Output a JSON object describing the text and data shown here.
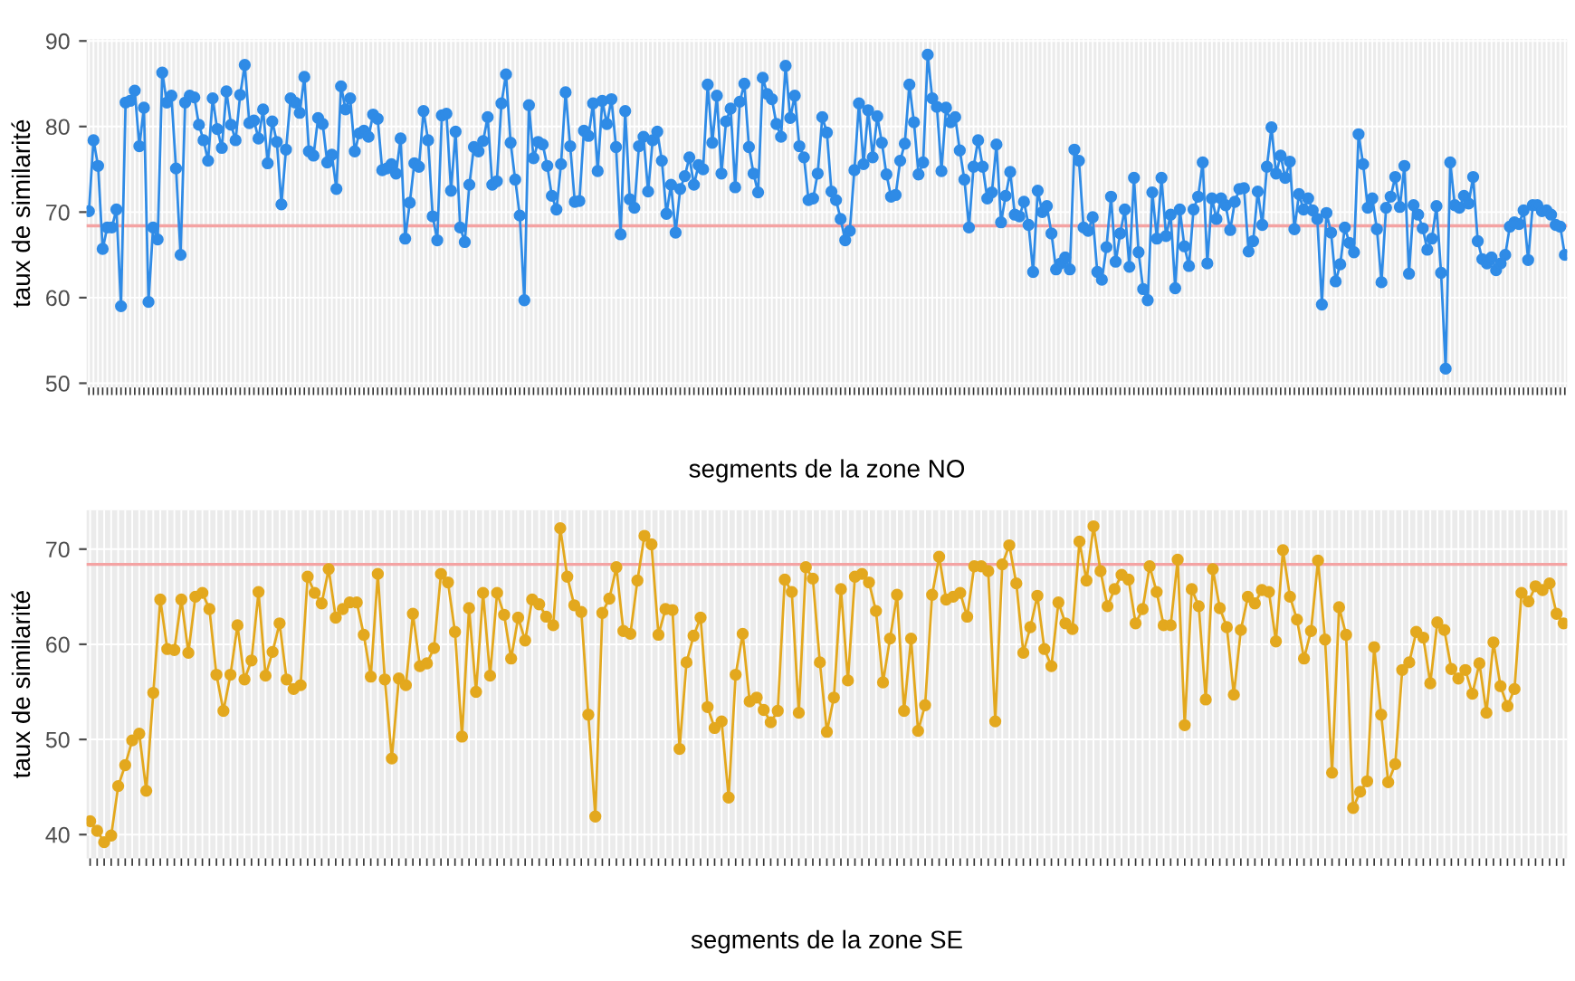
{
  "chart_data": [
    {
      "type": "line",
      "xlabel": "segments de la zone NO",
      "ylabel": "taux de similarité",
      "grid": true,
      "marker": "circle",
      "line_style": "solid",
      "ylim": [
        49.5,
        90.2
      ],
      "yticks": [
        50,
        60,
        70,
        80,
        90
      ],
      "ref_lines": [
        {
          "axis": "y",
          "value": 68.4,
          "color": "#f4a3a3"
        }
      ],
      "categories": [
        null,
        null,
        null,
        null,
        null,
        null,
        null,
        null,
        null,
        null,
        null,
        null,
        null,
        null,
        null,
        null,
        null,
        null,
        null,
        null,
        null,
        null,
        null,
        null,
        null,
        null,
        null,
        null,
        null,
        null,
        null,
        null,
        null,
        null,
        null,
        null,
        null,
        null,
        null,
        null,
        null,
        null,
        null,
        null,
        null,
        null,
        null,
        null,
        null,
        null,
        null,
        null,
        null,
        null,
        null,
        null,
        null,
        null,
        null,
        null,
        null,
        null,
        null,
        null,
        null,
        null,
        null,
        null,
        null,
        null,
        null,
        null,
        null,
        null,
        null,
        null,
        null,
        null,
        null,
        null,
        null,
        null,
        null,
        null,
        null,
        null,
        null,
        null,
        null,
        null,
        null,
        null,
        null,
        null,
        null,
        null,
        null,
        null,
        null,
        null,
        null,
        null,
        null,
        null,
        null,
        null,
        null,
        null,
        null,
        null,
        null,
        null,
        null,
        null,
        null,
        null,
        null,
        null,
        null,
        null,
        null,
        null,
        null,
        null,
        null,
        null,
        null,
        null,
        null,
        null,
        null,
        null,
        null,
        null,
        null,
        null,
        null,
        null,
        null,
        null,
        null,
        null,
        null,
        null,
        null,
        null,
        null,
        null,
        null,
        null,
        null,
        null,
        null,
        null,
        null,
        null,
        null,
        null,
        null,
        null,
        null,
        null,
        null,
        null,
        null,
        null,
        null,
        null,
        null,
        null,
        null,
        null,
        null,
        null,
        null,
        null,
        null,
        null,
        null,
        null,
        null,
        null,
        null,
        null,
        null,
        null,
        null,
        null,
        null,
        null,
        null,
        null,
        null,
        null,
        null,
        null,
        null,
        null,
        null,
        null,
        null,
        null,
        null,
        null,
        null,
        null,
        null,
        null,
        null,
        null,
        null,
        null,
        null,
        null,
        null,
        null,
        null,
        null,
        null,
        null,
        null,
        null,
        null,
        null,
        null,
        null,
        null,
        null,
        null,
        null,
        null,
        null,
        null,
        null,
        null,
        null,
        null,
        null,
        null,
        null,
        null,
        null,
        null,
        null,
        null,
        null,
        null,
        null,
        null,
        null,
        null,
        null,
        null,
        null,
        null,
        null,
        null,
        null,
        null,
        null,
        null,
        null,
        null,
        null,
        null,
        null,
        null,
        null,
        null,
        null,
        null,
        null,
        null,
        null,
        null,
        null,
        null,
        null,
        null,
        null,
        null,
        null,
        null,
        null,
        null,
        null,
        null,
        null,
        null,
        null,
        null,
        null,
        null,
        null,
        null,
        null,
        null,
        null,
        null,
        null,
        null,
        null,
        null,
        null,
        null,
        null,
        null,
        null,
        null,
        null,
        null,
        null,
        null,
        null,
        null,
        null,
        null,
        null,
        null,
        null,
        null,
        null,
        null
      ],
      "series": [
        {
          "color": "#2f8be6",
          "values": [
            70.1,
            78.4,
            75.4,
            65.7,
            68.2,
            68.2,
            70.3,
            59.0,
            82.8,
            83.0,
            84.2,
            77.7,
            82.2,
            59.5,
            68.2,
            66.8,
            86.3,
            82.8,
            83.6,
            75.1,
            65.0,
            82.8,
            83.6,
            83.4,
            80.2,
            78.4,
            76.0,
            83.3,
            79.7,
            77.5,
            84.1,
            80.2,
            78.4,
            83.7,
            87.2,
            80.4,
            80.7,
            78.6,
            82.0,
            75.7,
            80.6,
            78.2,
            70.9,
            77.3,
            83.3,
            82.8,
            81.6,
            85.8,
            77.1,
            76.6,
            81.0,
            80.3,
            75.8,
            76.7,
            72.7,
            84.7,
            82.0,
            83.3,
            77.1,
            79.2,
            79.5,
            78.8,
            81.4,
            80.9,
            74.9,
            75.1,
            75.6,
            74.5,
            78.6,
            66.9,
            71.1,
            75.7,
            75.3,
            81.8,
            78.4,
            69.5,
            66.7,
            81.3,
            81.5,
            72.5,
            79.4,
            68.2,
            66.5,
            73.2,
            77.6,
            77.1,
            78.3,
            81.1,
            73.2,
            73.6,
            82.7,
            86.1,
            78.1,
            73.8,
            69.6,
            59.7,
            82.5,
            76.3,
            78.2,
            77.9,
            75.4,
            71.9,
            70.3,
            75.6,
            84.0,
            77.7,
            71.2,
            71.3,
            79.5,
            78.9,
            82.7,
            74.8,
            83.0,
            80.3,
            83.2,
            77.6,
            67.4,
            81.8,
            71.5,
            70.5,
            77.7,
            78.8,
            72.4,
            78.4,
            79.4,
            76.0,
            69.8,
            73.2,
            67.6,
            72.7,
            74.2,
            76.4,
            73.2,
            75.5,
            75.0,
            84.9,
            78.1,
            83.6,
            74.5,
            80.6,
            82.1,
            72.9,
            82.9,
            85.0,
            77.6,
            74.5,
            72.3,
            85.7,
            83.8,
            83.2,
            80.3,
            78.8,
            87.1,
            81.0,
            83.6,
            77.7,
            76.4,
            71.4,
            71.6,
            74.5,
            81.1,
            79.3,
            72.4,
            71.4,
            69.2,
            66.7,
            67.8,
            74.9,
            82.7,
            75.6,
            81.9,
            76.4,
            81.2,
            78.1,
            74.4,
            71.8,
            72.0,
            76.0,
            78.0,
            84.9,
            80.5,
            74.4,
            75.8,
            88.4,
            83.3,
            82.3,
            74.8,
            82.2,
            80.5,
            81.1,
            77.2,
            73.8,
            68.2,
            75.3,
            78.4,
            75.3,
            71.6,
            72.3,
            77.9,
            68.8,
            71.9,
            74.7,
            69.7,
            69.5,
            71.2,
            68.5,
            63.0,
            72.5,
            70.0,
            70.7,
            67.5,
            63.3,
            64.0,
            64.7,
            63.3,
            77.3,
            76.0,
            68.2,
            67.8,
            69.4,
            63.0,
            62.1,
            65.9,
            71.8,
            64.2,
            67.5,
            70.3,
            63.6,
            74.0,
            65.3,
            61.0,
            59.7,
            72.3,
            66.9,
            74.0,
            67.2,
            69.7,
            61.1,
            70.3,
            66.0,
            63.7,
            70.3,
            71.8,
            75.8,
            64.0,
            71.6,
            69.2,
            71.6,
            70.8,
            67.9,
            71.2,
            72.7,
            72.8,
            65.4,
            66.6,
            72.4,
            68.5,
            75.3,
            79.9,
            74.5,
            76.6,
            74.0,
            75.9,
            68.0,
            72.1,
            70.3,
            71.6,
            70.2,
            69.2,
            59.2,
            69.9,
            67.6,
            61.9,
            63.9,
            68.2,
            66.4,
            65.3,
            79.1,
            75.6,
            70.5,
            71.6,
            68.0,
            61.8,
            70.5,
            71.8,
            74.1,
            70.6,
            75.4,
            62.8,
            70.8,
            69.7,
            68.1,
            65.6,
            66.9,
            70.7,
            62.9,
            51.7,
            75.8,
            70.8,
            70.5,
            71.9,
            71.0,
            74.1,
            66.6,
            64.5,
            64.0,
            64.7,
            63.2,
            64.0,
            65.0,
            68.3,
            68.8,
            68.6,
            70.2,
            64.4,
            70.8,
            70.8,
            70.1,
            70.2,
            69.7,
            68.5,
            68.3,
            65.0
          ]
        }
      ]
    },
    {
      "type": "line",
      "xlabel": "segments de la zone SE",
      "ylabel": "taux de similarité",
      "grid": true,
      "marker": "circle",
      "line_style": "solid",
      "ylim": [
        37.5,
        74.1
      ],
      "yticks": [
        40,
        50,
        60,
        70
      ],
      "ref_lines": [
        {
          "axis": "y",
          "value": 68.4,
          "color": "#f4a3a3"
        }
      ],
      "categories": [
        null,
        null,
        null,
        null,
        null,
        null,
        null,
        null,
        null,
        null,
        null,
        null,
        null,
        null,
        null,
        null,
        null,
        null,
        null,
        null,
        null,
        null,
        null,
        null,
        null,
        null,
        null,
        null,
        null,
        null,
        null,
        null,
        null,
        null,
        null,
        null,
        null,
        null,
        null,
        null,
        null,
        null,
        null,
        null,
        null,
        null,
        null,
        null,
        null,
        null,
        null,
        null,
        null,
        null,
        null,
        null,
        null,
        null,
        null,
        null,
        null,
        null,
        null,
        null,
        null,
        null,
        null,
        null,
        null,
        null,
        null,
        null,
        null,
        null,
        null,
        null,
        null,
        null,
        null,
        null,
        null,
        null,
        null,
        null,
        null,
        null,
        null,
        null,
        null,
        null,
        null,
        null,
        null,
        null,
        null,
        null,
        null,
        null,
        null,
        null,
        null,
        null,
        null,
        null,
        null,
        null,
        null,
        null,
        null,
        null,
        null,
        null,
        null,
        null,
        null,
        null,
        null,
        null,
        null,
        null,
        null,
        null,
        null,
        null,
        null,
        null,
        null,
        null,
        null,
        null,
        null,
        null,
        null,
        null,
        null,
        null,
        null,
        null,
        null,
        null,
        null,
        null,
        null,
        null,
        null,
        null,
        null,
        null,
        null,
        null,
        null,
        null,
        null,
        null,
        null,
        null,
        null,
        null,
        null,
        null,
        null,
        null,
        null,
        null,
        null,
        null,
        null,
        null,
        null,
        null,
        null,
        null,
        null,
        null,
        null,
        null,
        null,
        null,
        null,
        null,
        null,
        null,
        null,
        null,
        null,
        null,
        null,
        null,
        null,
        null,
        null,
        null,
        null,
        null,
        null,
        null,
        null,
        null,
        null,
        null,
        null,
        null,
        null,
        null,
        null,
        null,
        null,
        null,
        null,
        null,
        null
      ],
      "series": [
        {
          "color": "#e3a81e",
          "values": [
            41.4,
            40.4,
            39.2,
            39.9,
            45.1,
            47.3,
            49.9,
            50.6,
            44.6,
            54.9,
            64.7,
            59.5,
            59.4,
            64.7,
            59.1,
            65.0,
            65.4,
            63.7,
            56.8,
            53.0,
            56.8,
            62.0,
            56.3,
            58.3,
            65.5,
            56.7,
            59.2,
            62.2,
            56.3,
            55.3,
            55.7,
            67.1,
            65.4,
            64.3,
            67.9,
            62.8,
            63.7,
            64.4,
            64.4,
            61.0,
            56.6,
            67.4,
            56.3,
            48.0,
            56.4,
            55.7,
            63.2,
            57.7,
            58.0,
            59.6,
            67.4,
            66.5,
            61.3,
            50.3,
            63.8,
            55.0,
            65.4,
            56.7,
            65.4,
            63.1,
            58.5,
            62.8,
            60.4,
            64.7,
            64.2,
            62.9,
            62.0,
            72.2,
            67.1,
            64.1,
            63.4,
            52.6,
            41.9,
            63.3,
            64.8,
            68.1,
            61.4,
            61.1,
            66.7,
            71.4,
            70.5,
            61.0,
            63.7,
            63.6,
            49.0,
            58.1,
            60.9,
            62.8,
            53.4,
            51.2,
            51.9,
            43.9,
            56.8,
            61.1,
            54.0,
            54.4,
            53.1,
            51.8,
            53.0,
            66.8,
            65.5,
            52.8,
            68.1,
            66.9,
            58.1,
            50.8,
            54.4,
            65.8,
            56.2,
            67.1,
            67.4,
            66.5,
            63.5,
            56.0,
            60.6,
            65.2,
            53.0,
            60.6,
            50.9,
            53.6,
            65.2,
            69.2,
            64.7,
            65.0,
            65.4,
            62.9,
            68.2,
            68.2,
            67.7,
            51.9,
            68.4,
            70.4,
            66.4,
            59.1,
            61.8,
            65.1,
            59.5,
            57.7,
            64.4,
            62.2,
            61.6,
            70.8,
            66.7,
            72.4,
            67.7,
            64.0,
            65.8,
            67.3,
            66.8,
            62.2,
            63.7,
            68.2,
            65.5,
            62.0,
            62.0,
            68.9,
            51.5,
            65.8,
            64.0,
            54.2,
            67.9,
            63.8,
            61.8,
            54.7,
            61.5,
            65.0,
            64.3,
            65.7,
            65.5,
            60.3,
            69.9,
            65.0,
            62.6,
            58.5,
            61.4,
            68.8,
            60.5,
            46.5,
            63.9,
            61.0,
            42.8,
            44.5,
            45.6,
            59.7,
            52.6,
            45.5,
            47.4,
            57.3,
            58.1,
            61.3,
            60.7,
            55.9,
            62.3,
            61.5,
            57.4,
            56.4,
            57.3,
            54.8,
            58.0,
            52.8,
            60.2,
            55.6,
            53.5,
            55.3,
            65.4,
            64.5,
            66.1,
            65.7,
            66.4,
            63.2,
            62.2
          ]
        }
      ]
    }
  ]
}
